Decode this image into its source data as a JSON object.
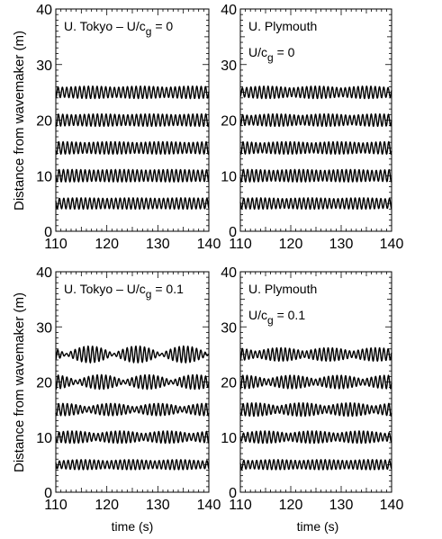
{
  "figure": {
    "ylabel": "Distance from wavemaker (m)",
    "xlabels": [
      "time (s)",
      "time (s)"
    ]
  },
  "chart_data": [
    {
      "type": "line",
      "title_main": "U. Tokyo – U/c",
      "title_sub": "g",
      "title_tail": " = 0",
      "xlim": [
        110,
        140
      ],
      "ylim": [
        0,
        40
      ],
      "xticks": [
        "110",
        "120",
        "130",
        "140"
      ],
      "yticks": [
        "0",
        "10",
        "20",
        "30",
        "40"
      ],
      "series": [
        {
          "offset": 5,
          "amplitude": 1.0,
          "period": 0.85,
          "phase": 0.0,
          "env_period": 10,
          "env_phase": 0.0,
          "mod": 0.1
        },
        {
          "offset": 10,
          "amplitude": 1.1,
          "period": 0.85,
          "phase": 0.5,
          "env_period": 10,
          "env_phase": 0.7,
          "mod": 0.1
        },
        {
          "offset": 15,
          "amplitude": 1.1,
          "period": 0.85,
          "phase": 1.0,
          "env_period": 10,
          "env_phase": 1.3,
          "mod": 0.15
        },
        {
          "offset": 20,
          "amplitude": 1.1,
          "period": 0.85,
          "phase": 1.5,
          "env_period": 10,
          "env_phase": 2.0,
          "mod": 0.15
        },
        {
          "offset": 25,
          "amplitude": 1.1,
          "period": 0.85,
          "phase": 2.0,
          "env_period": 10,
          "env_phase": 2.6,
          "mod": 0.2
        }
      ]
    },
    {
      "type": "line",
      "title_main": "U. Plymouth",
      "subtitle_main": "U/c",
      "subtitle_sub": "g",
      "subtitle_tail": " = 0",
      "xlim": [
        110,
        140
      ],
      "ylim": [
        0,
        40
      ],
      "xticks": [
        "110",
        "120",
        "130",
        "140"
      ],
      "yticks": [
        "0",
        "10",
        "20",
        "30",
        "40"
      ],
      "series": [
        {
          "offset": 5,
          "amplitude": 1.0,
          "period": 0.85,
          "phase": 0.3,
          "env_period": 10,
          "env_phase": 0.4,
          "mod": 0.15
        },
        {
          "offset": 10,
          "amplitude": 1.1,
          "period": 0.85,
          "phase": 0.8,
          "env_period": 10,
          "env_phase": 1.1,
          "mod": 0.15
        },
        {
          "offset": 15,
          "amplitude": 1.1,
          "period": 0.85,
          "phase": 1.3,
          "env_period": 10,
          "env_phase": 1.8,
          "mod": 0.2
        },
        {
          "offset": 20,
          "amplitude": 1.1,
          "period": 0.85,
          "phase": 1.8,
          "env_period": 10,
          "env_phase": 2.5,
          "mod": 0.25
        },
        {
          "offset": 25,
          "amplitude": 1.1,
          "period": 0.85,
          "phase": 2.3,
          "env_period": 10,
          "env_phase": 3.1,
          "mod": 0.3
        }
      ]
    },
    {
      "type": "line",
      "title_main": "U. Tokyo – U/c",
      "title_sub": "g",
      "title_tail": " = 0.1",
      "xlim": [
        110,
        140
      ],
      "ylim": [
        0,
        40
      ],
      "xticks": [
        "110",
        "120",
        "130",
        "140"
      ],
      "yticks": [
        "0",
        "10",
        "20",
        "30",
        "40"
      ],
      "series": [
        {
          "offset": 5,
          "amplitude": 0.9,
          "period": 0.85,
          "phase": 0.0,
          "env_period": 9.3,
          "env_phase": 0.3,
          "mod": 0.25
        },
        {
          "offset": 10,
          "amplitude": 1.1,
          "period": 0.85,
          "phase": 0.6,
          "env_period": 9.3,
          "env_phase": 1.0,
          "mod": 0.45
        },
        {
          "offset": 15,
          "amplitude": 1.1,
          "period": 0.85,
          "phase": 1.2,
          "env_period": 9.3,
          "env_phase": 1.6,
          "mod": 0.6
        },
        {
          "offset": 20,
          "amplitude": 1.3,
          "period": 0.85,
          "phase": 1.8,
          "env_period": 9.3,
          "env_phase": 2.3,
          "mod": 0.8
        },
        {
          "offset": 25,
          "amplitude": 1.5,
          "period": 0.85,
          "phase": 2.4,
          "env_period": 9.3,
          "env_phase": 3.0,
          "mod": 0.92
        }
      ]
    },
    {
      "type": "line",
      "title_main": "U. Plymouth",
      "subtitle_main": "U/c",
      "subtitle_sub": "g",
      "subtitle_tail": " = 0.1",
      "xlim": [
        110,
        140
      ],
      "ylim": [
        0,
        40
      ],
      "xticks": [
        "110",
        "120",
        "130",
        "140"
      ],
      "yticks": [
        "0",
        "10",
        "20",
        "30",
        "40"
      ],
      "series": [
        {
          "offset": 5,
          "amplitude": 0.9,
          "period": 0.85,
          "phase": 0.2,
          "env_period": 9.5,
          "env_phase": 0.6,
          "mod": 0.2
        },
        {
          "offset": 10,
          "amplitude": 1.1,
          "period": 0.85,
          "phase": 0.7,
          "env_period": 9.5,
          "env_phase": 1.3,
          "mod": 0.4
        },
        {
          "offset": 15,
          "amplitude": 1.2,
          "period": 0.85,
          "phase": 1.2,
          "env_period": 9.5,
          "env_phase": 2.0,
          "mod": 0.5
        },
        {
          "offset": 20,
          "amplitude": 1.2,
          "period": 0.85,
          "phase": 1.7,
          "env_period": 9.5,
          "env_phase": 2.7,
          "mod": 0.6
        },
        {
          "offset": 25,
          "amplitude": 1.2,
          "period": 0.85,
          "phase": 2.2,
          "env_period": 9.5,
          "env_phase": 3.4,
          "mod": 0.55
        }
      ]
    }
  ]
}
